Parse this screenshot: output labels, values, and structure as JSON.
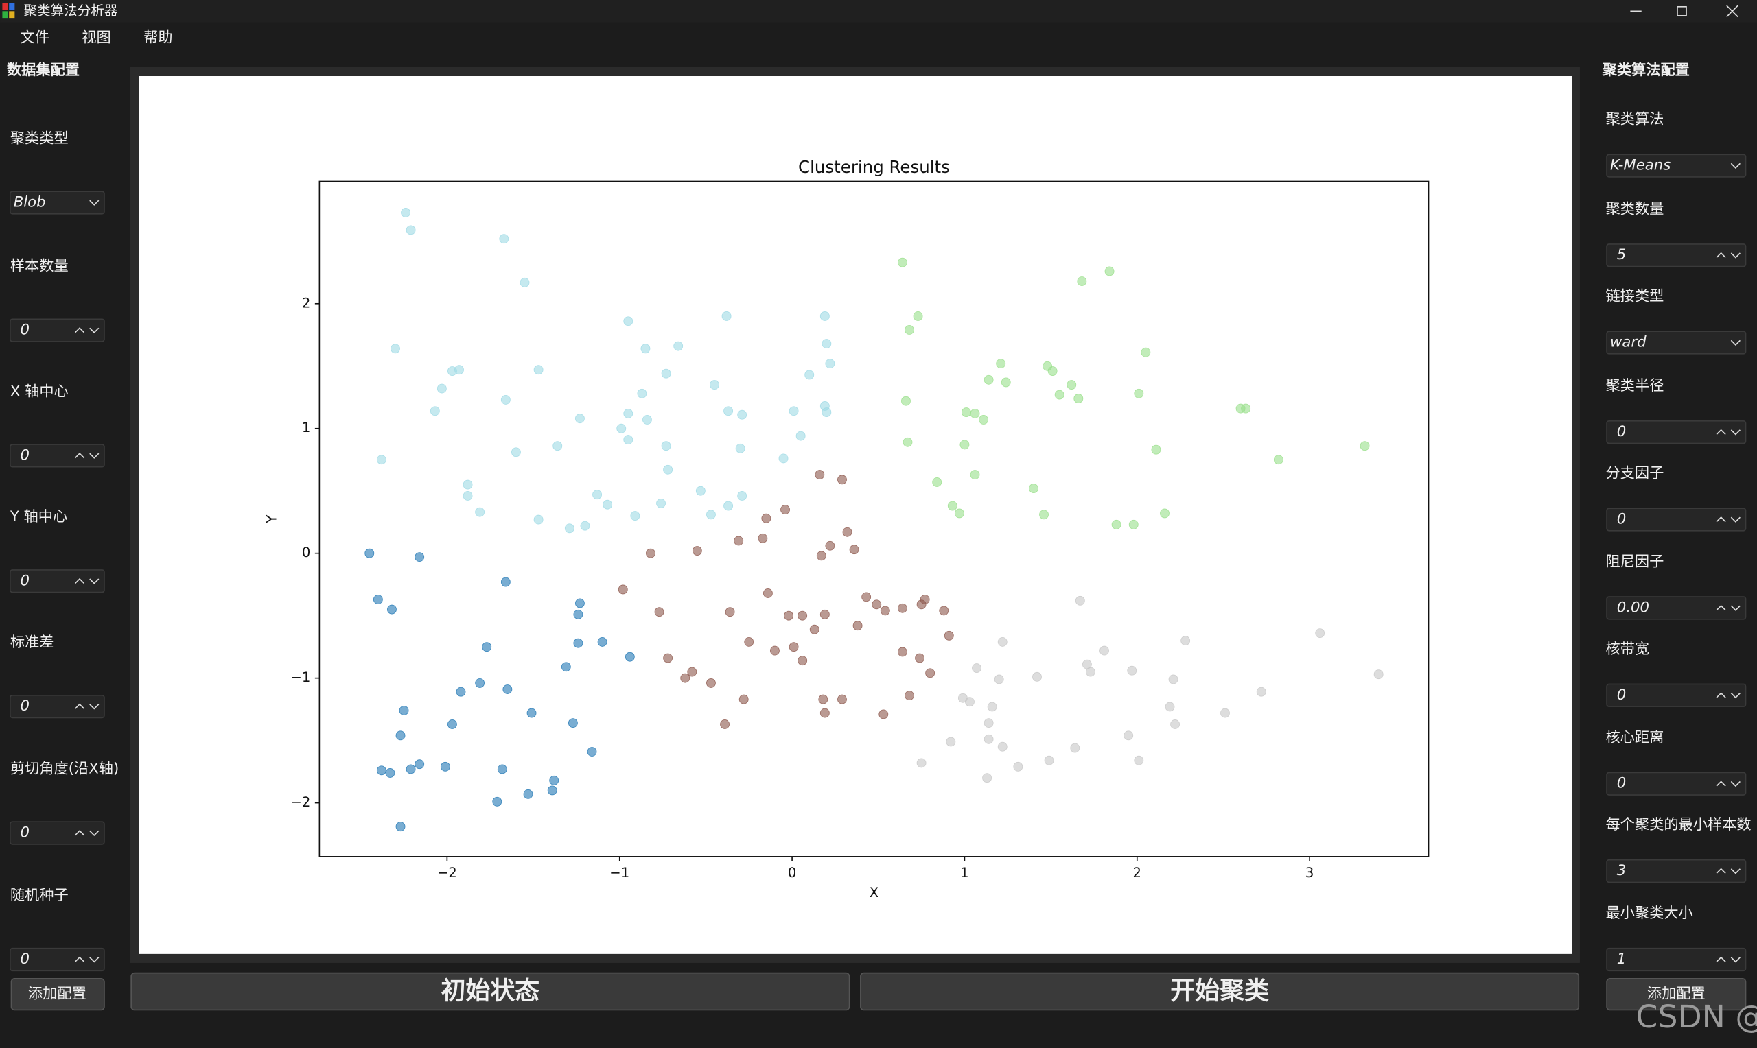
{
  "window": {
    "title": "聚类算法分析器"
  },
  "menu": [
    "文件",
    "视图",
    "帮助"
  ],
  "left_panel": {
    "title": "数据集配置",
    "fields": [
      {
        "label": "聚类类型",
        "value": "Blob"
      },
      {
        "label": "样本数量",
        "value": "0"
      },
      {
        "label": "X 轴中心",
        "value": "0"
      },
      {
        "label": "Y 轴中心",
        "value": "0"
      },
      {
        "label": "标准差",
        "value": "0"
      },
      {
        "label": "剪切角度(沿X轴)",
        "value": "0"
      },
      {
        "label": "随机种子",
        "value": "0"
      }
    ],
    "button": "添加配置"
  },
  "right_panel": {
    "title": "聚类算法配置",
    "fields": [
      {
        "label": "聚类算法",
        "value": "K-Means"
      },
      {
        "label": "聚类数量",
        "value": "5"
      },
      {
        "label": "链接类型",
        "value": "ward"
      },
      {
        "label": "聚类半径",
        "value": "0"
      },
      {
        "label": "分支因子",
        "value": "0"
      },
      {
        "label": "阻尼因子",
        "value": "0.00"
      },
      {
        "label": "核带宽",
        "value": "0"
      },
      {
        "label": "核心距离",
        "value": "0"
      },
      {
        "label": "每个聚类的最小样本数",
        "value": "3"
      },
      {
        "label": "最小聚类大小",
        "value": "1"
      }
    ],
    "button": "添加配置"
  },
  "buttons": [
    "初始状态",
    "开始聚类"
  ],
  "watermark": "CSDN @康木研",
  "chart_data": {
    "type": "scatter",
    "title": "Clustering Results",
    "x_label": "X",
    "y_label": "Y",
    "xlim": [
      -2.74,
      3.69
    ],
    "ylim": [
      -2.43,
      2.98
    ],
    "xticks": [
      {
        "value": -2,
        "label": "−2"
      },
      {
        "value": -1,
        "label": "−1"
      },
      0,
      1,
      2,
      3
    ],
    "yticks": [
      {
        "value": -2,
        "label": "−2"
      },
      {
        "value": -1,
        "label": "−1"
      },
      0,
      1,
      2
    ],
    "grid": false,
    "series": [
      {
        "color": "#1f77b4",
        "x": [
          -2.45,
          -2.4,
          -2.32,
          -2.16,
          -1.66,
          -1.23,
          -1.24,
          -1.24,
          -1.1,
          -0.94,
          -1.77,
          -1.31,
          -1.92,
          -1.81,
          -1.65,
          -1.51,
          -1.97,
          -2.25,
          -2.27,
          -2.38,
          -2.33,
          -2.21,
          -2.16,
          -2.01,
          -1.68,
          -1.16,
          -1.27,
          -1.38,
          -1.39,
          -1.53,
          -1.71,
          -2.27
        ],
        "values": [
          0,
          -0.37,
          -0.45,
          -0.03,
          -0.23,
          -0.4,
          -0.49,
          -0.72,
          -0.71,
          -0.83,
          -0.75,
          -0.91,
          -1.11,
          -1.04,
          -1.09,
          -1.28,
          -1.37,
          -1.26,
          -1.46,
          -1.74,
          -1.76,
          -1.73,
          -1.69,
          -1.71,
          -1.73,
          -1.59,
          -1.36,
          -1.82,
          -1.9,
          -1.93,
          -1.99,
          -2.19
        ]
      },
      {
        "color": "#8c564b",
        "x": [
          0.16,
          0.29,
          -0.04,
          -0.15,
          0.22,
          0.32,
          0.36,
          0.17,
          -0.31,
          -0.17,
          -0.55,
          -0.82,
          -0.98,
          -0.77,
          -0.36,
          -0.14,
          -0.02,
          0.06,
          0.19,
          0.43,
          0.49,
          0.54,
          0.64,
          0.75,
          0.77,
          0.88,
          0.38,
          0.13,
          0.01,
          -0.1,
          0.06,
          -0.25,
          -0.72,
          -0.58,
          -0.62,
          -0.47,
          -0.39,
          -0.28,
          0.18,
          0.29,
          0.19,
          0.53,
          0.68,
          0.8,
          0.74,
          0.64,
          0.91
        ],
        "values": [
          0.63,
          0.59,
          0.35,
          0.28,
          0.06,
          0.17,
          0.03,
          -0.02,
          0.1,
          0.12,
          0.02,
          0.0,
          -0.29,
          -0.47,
          -0.47,
          -0.32,
          -0.5,
          -0.5,
          -0.49,
          -0.35,
          -0.41,
          -0.46,
          -0.44,
          -0.41,
          -0.37,
          -0.46,
          -0.58,
          -0.61,
          -0.75,
          -0.78,
          -0.86,
          -0.71,
          -0.84,
          -0.95,
          -1.0,
          -1.04,
          -1.37,
          -1.17,
          -1.17,
          -1.17,
          -1.28,
          -1.29,
          -1.14,
          -0.96,
          -0.84,
          -0.79,
          -0.66
        ]
      },
      {
        "color": "#9edae5",
        "x": [
          -2.24,
          -2.21,
          -1.67,
          -1.55,
          -2.3,
          -0.38,
          -0.95,
          0.19,
          0.2,
          0.22,
          -0.66,
          -0.85,
          -2.03,
          -1.97,
          -1.93,
          -1.66,
          -1.47,
          -0.87,
          -0.73,
          -0.45,
          0.1,
          -2.07,
          -1.23,
          -0.99,
          -0.95,
          -0.84,
          -0.37,
          -0.29,
          0.01,
          0.19,
          0.2,
          -2.38,
          -1.6,
          -1.36,
          -0.95,
          -0.73,
          0.05,
          -0.3,
          -0.72,
          -0.05,
          -1.88,
          -1.88,
          -1.81,
          -1.13,
          -1.07,
          -0.91,
          -0.76,
          -0.53,
          -0.47,
          -0.37,
          -0.29,
          -1.47,
          -1.29,
          -1.2
        ],
        "values": [
          2.73,
          2.59,
          2.52,
          2.17,
          1.64,
          1.9,
          1.86,
          1.9,
          1.68,
          1.52,
          1.66,
          1.64,
          1.32,
          1.46,
          1.47,
          1.23,
          1.47,
          1.28,
          1.44,
          1.35,
          1.43,
          1.14,
          1.08,
          1.0,
          1.12,
          1.07,
          1.14,
          1.11,
          1.14,
          1.18,
          1.13,
          0.75,
          0.81,
          0.86,
          0.91,
          0.86,
          0.94,
          0.84,
          0.67,
          0.76,
          0.55,
          0.46,
          0.33,
          0.47,
          0.39,
          0.3,
          0.4,
          0.5,
          0.31,
          0.38,
          0.46,
          0.27,
          0.2,
          0.22
        ]
      },
      {
        "color": "#98df8a",
        "x": [
          0.64,
          1.84,
          1.68,
          0.73,
          0.68,
          1.21,
          1.48,
          1.51,
          2.05,
          1.14,
          1.24,
          1.62,
          1.55,
          1.66,
          2.01,
          0.66,
          1.01,
          1.06,
          1.11,
          2.6,
          2.63,
          0.67,
          1.0,
          2.11,
          3.32,
          2.82,
          1.06,
          0.84,
          1.4,
          0.93,
          0.97,
          1.46,
          2.16,
          1.88,
          1.98
        ],
        "values": [
          2.33,
          2.26,
          2.18,
          1.9,
          1.79,
          1.52,
          1.5,
          1.46,
          1.61,
          1.39,
          1.37,
          1.35,
          1.27,
          1.24,
          1.28,
          1.22,
          1.13,
          1.12,
          1.07,
          1.16,
          1.16,
          0.89,
          0.87,
          0.83,
          0.86,
          0.75,
          0.63,
          0.57,
          0.52,
          0.38,
          0.32,
          0.31,
          0.32,
          0.23,
          0.23
        ]
      },
      {
        "color": "#c7c7c7",
        "x": [
          1.67,
          3.06,
          2.28,
          1.22,
          1.81,
          1.71,
          1.73,
          1.97,
          3.4,
          1.07,
          1.2,
          1.42,
          2.21,
          0.99,
          1.03,
          1.16,
          2.72,
          2.19,
          2.51,
          1.14,
          2.22,
          1.14,
          1.22,
          0.92,
          1.95,
          1.64,
          1.49,
          1.31,
          0.75,
          2.01,
          1.13
        ],
        "values": [
          -0.38,
          -0.64,
          -0.7,
          -0.71,
          -0.78,
          -0.89,
          -0.95,
          -0.94,
          -0.97,
          -0.92,
          -1.01,
          -0.99,
          -1.01,
          -1.16,
          -1.19,
          -1.23,
          -1.11,
          -1.23,
          -1.28,
          -1.36,
          -1.37,
          -1.49,
          -1.55,
          -1.51,
          -1.46,
          -1.56,
          -1.66,
          -1.71,
          -1.68,
          -1.66,
          -1.8
        ]
      }
    ]
  }
}
